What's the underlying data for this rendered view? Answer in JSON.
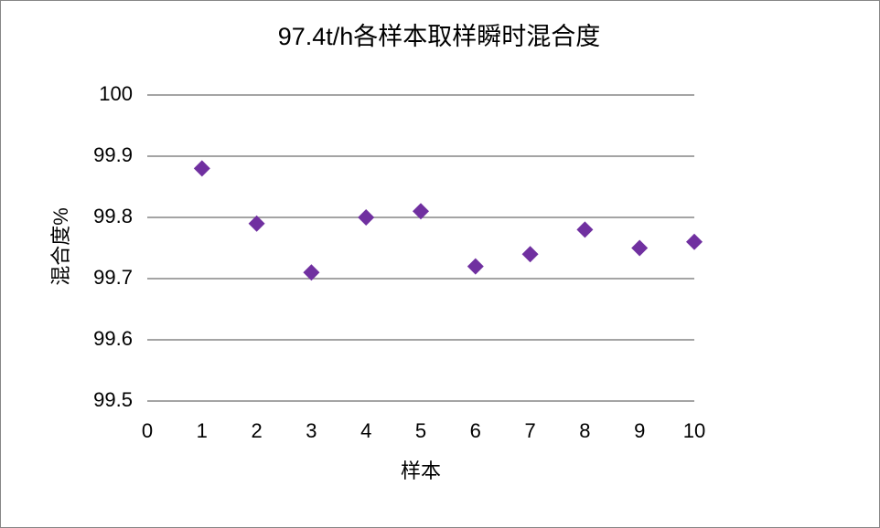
{
  "chart_data": {
    "type": "scatter",
    "title": "97.4t/h各样本取样瞬时混合度",
    "x_label": "样本",
    "y_label": "混合度%",
    "x": [
      1,
      2,
      3,
      4,
      5,
      6,
      7,
      8,
      9,
      10
    ],
    "values": [
      99.88,
      99.79,
      99.71,
      99.8,
      99.81,
      99.72,
      99.74,
      99.78,
      99.75,
      99.76
    ],
    "color": "#7030a0",
    "xlim": [
      0,
      10
    ],
    "xticks": [
      0,
      1,
      2,
      3,
      4,
      5,
      6,
      7,
      8,
      9,
      10
    ],
    "ylim": [
      99.5,
      100
    ],
    "yticks": [
      99.5,
      99.6,
      99.7,
      99.8,
      99.9,
      100
    ],
    "grid": true
  }
}
